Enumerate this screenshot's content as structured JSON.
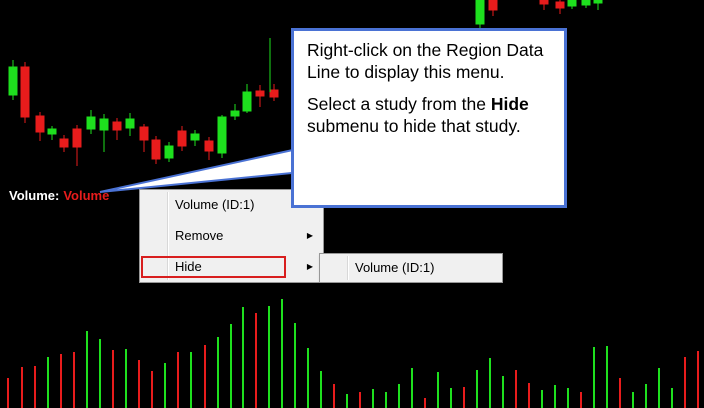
{
  "region_data_line": {
    "label": "Volume:",
    "study_value": "Volume"
  },
  "context_menu": {
    "items": [
      {
        "label": "Volume (ID:1)",
        "has_submenu": false
      },
      {
        "label": "Remove",
        "has_submenu": true
      },
      {
        "label": "Hide",
        "has_submenu": true
      }
    ]
  },
  "submenu": {
    "items": [
      {
        "label": "Volume (ID:1)"
      }
    ]
  },
  "callout": {
    "line1": "Right-click on the Region Data Line to display this menu.",
    "line2_pre": "Select a study from the ",
    "line2_bold": "Hide",
    "line2_post": " submenu to hide that study."
  },
  "colors": {
    "background": "#000000",
    "up": "#1ee01e",
    "down": "#e81c1c",
    "callout_border": "#4a72d4",
    "highlight_border": "#d81e1e"
  }
}
